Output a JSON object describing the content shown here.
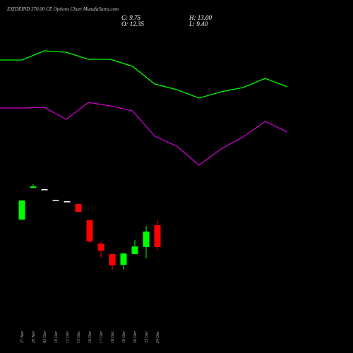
{
  "chart_data": [
    {
      "type": "line",
      "ylim": [
        0,
        220
      ],
      "series": [
        {
          "color": "#00ff00",
          "values": [
            175,
            175,
            188,
            186,
            176,
            176,
            166,
            141,
            133,
            121,
            130,
            136,
            149,
            137
          ]
        },
        {
          "color": "#cc00cc",
          "values": [
            107,
            107,
            108,
            91,
            115,
            110,
            103,
            67,
            53,
            26,
            49,
            66,
            88,
            73
          ]
        }
      ]
    },
    {
      "type": "candlestick",
      "title": "EXIDEIND 370.00 CE Options Chart MunafaSutra.com",
      "ohlc_labels": {
        "close": "C: 9.75",
        "open": "O: 12.35",
        "high": "H: 13.00",
        "low": "L: 9.40"
      },
      "categories": [
        "27 Nov",
        "29 Nov",
        "03 Dec",
        "10 Dec",
        "12 Dec",
        "13 Dec",
        "16 Dec",
        "17 Dec",
        "18 Dec",
        "19 Dec",
        "20 Dec",
        "23 Dec",
        "24 Dec"
      ],
      "open": [
        13.02,
        16.8,
        16.63,
        15.37,
        15.2,
        14.87,
        12.94,
        10.17,
        8.91,
        7.65,
        8.91,
        9.75,
        12.35
      ],
      "high": [
        15.29,
        17.22,
        16.63,
        15.37,
        15.2,
        14.87,
        13.1,
        10.34,
        8.91,
        9.08,
        10.59,
        12.27,
        13.0
      ],
      "low": [
        13.02,
        16.8,
        16.63,
        15.37,
        15.2,
        13.94,
        10.25,
        8.49,
        6.98,
        7.06,
        8.91,
        8.41,
        9.4
      ],
      "close": [
        15.29,
        16.96,
        16.63,
        15.37,
        15.2,
        13.94,
        10.42,
        9.33,
        7.57,
        8.99,
        9.83,
        11.6,
        9.75
      ],
      "up_color": "#00ff00",
      "down_color": "#ff0000",
      "flat_color": "#ffffff",
      "ylim": [
        3.88,
        18.14
      ]
    }
  ]
}
